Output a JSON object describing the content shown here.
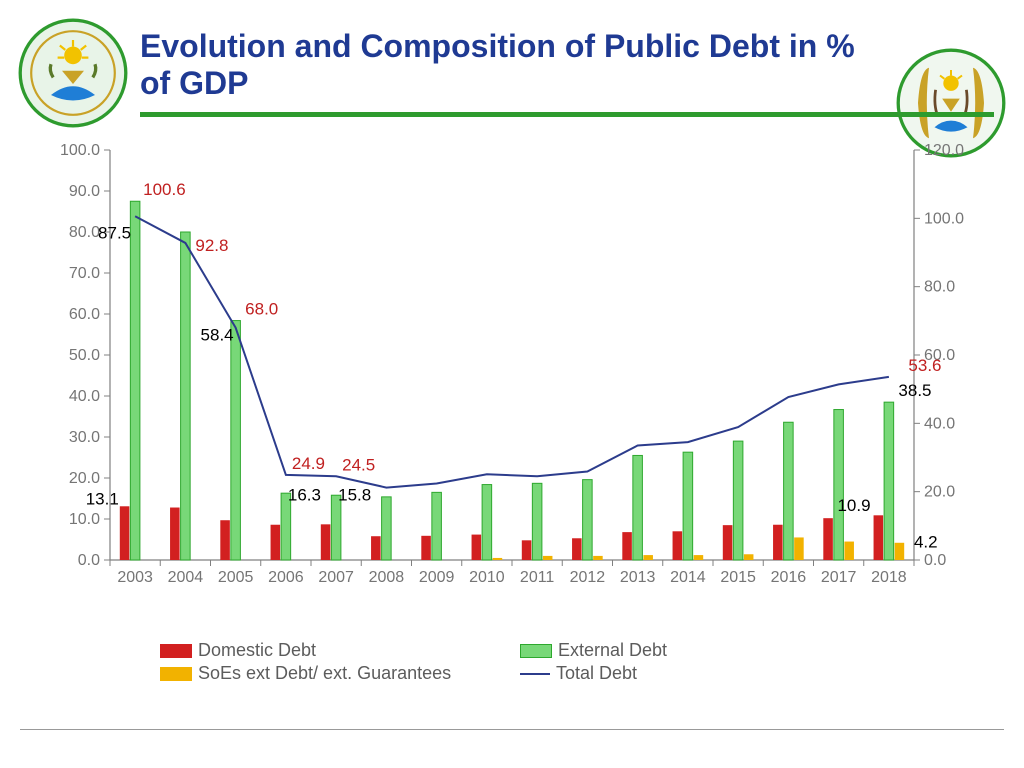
{
  "title": "Evolution and Composition of Public Debt in % of GDP",
  "colors": {
    "title": "#1f3a93",
    "rule": "#2e9b2e",
    "axis_text": "#757575",
    "axis_line": "#808080",
    "domestic": "#d22020",
    "external_fill": "#78d878",
    "external_stroke": "#2ea82e",
    "soes": "#f2b200",
    "line": "#2c3c8c",
    "label_black": "#000000",
    "label_red": "#c02020",
    "background": "#ffffff"
  },
  "chart": {
    "type": "bar+line",
    "years": [
      "2003",
      "2004",
      "2005",
      "2006",
      "2007",
      "2008",
      "2009",
      "2010",
      "2011",
      "2012",
      "2013",
      "2014",
      "2015",
      "2016",
      "2017",
      "2018"
    ],
    "left_axis": {
      "min": 0,
      "max": 100,
      "step": 10,
      "decimals": 1
    },
    "right_axis": {
      "min": 0,
      "max": 120,
      "step": 20,
      "decimals": 1
    },
    "series": {
      "domestic": [
        13.1,
        12.8,
        9.7,
        8.6,
        8.7,
        5.8,
        5.9,
        6.2,
        4.8,
        5.3,
        6.8,
        7.0,
        8.5,
        8.6,
        10.2,
        10.9
      ],
      "external": [
        87.5,
        80.0,
        58.4,
        16.3,
        15.8,
        15.4,
        16.5,
        18.4,
        18.7,
        19.6,
        25.5,
        26.3,
        29.0,
        33.6,
        36.7,
        38.5
      ],
      "soes": [
        0,
        0,
        0,
        0,
        0,
        0,
        0,
        0.5,
        1.0,
        1.0,
        1.2,
        1.2,
        1.4,
        5.5,
        4.5,
        4.2
      ],
      "total": [
        100.6,
        92.8,
        68.0,
        24.9,
        24.5,
        21.2,
        22.4,
        25.1,
        24.5,
        25.9,
        33.5,
        34.5,
        38.9,
        47.7,
        51.4,
        53.6
      ]
    },
    "labels": [
      {
        "year": "2003",
        "text": "13.1",
        "color": "black",
        "pos": "low"
      },
      {
        "year": "2003",
        "text": "100.6",
        "color": "red",
        "pos": "top"
      },
      {
        "year": "2003",
        "text": "87.5",
        "color": "black",
        "pos": "high"
      },
      {
        "year": "2004",
        "text": "92.8",
        "color": "red",
        "pos": "high"
      },
      {
        "year": "2005",
        "text": "68.0",
        "color": "red",
        "pos": "highR"
      },
      {
        "year": "2005",
        "text": "58.4",
        "color": "black",
        "pos": "mid"
      },
      {
        "year": "2006",
        "text": "16.3",
        "color": "black",
        "pos": "lowR"
      },
      {
        "year": "2006",
        "text": "24.9",
        "color": "red",
        "pos": "upR"
      },
      {
        "year": "2007",
        "text": "15.8",
        "color": "black",
        "pos": "lowR"
      },
      {
        "year": "2007",
        "text": "24.5",
        "color": "red",
        "pos": "upR"
      },
      {
        "year": "2018",
        "text": "53.6",
        "color": "red",
        "pos": "topR"
      },
      {
        "year": "2018",
        "text": "38.5",
        "color": "black",
        "pos": "highR"
      },
      {
        "year": "2018",
        "text": "10.9",
        "color": "black",
        "pos": "lowL"
      },
      {
        "year": "2018",
        "text": "4.2",
        "color": "black",
        "pos": "bottomR"
      }
    ],
    "fontsize_axis": 16,
    "fontsize_label": 17
  },
  "legend": {
    "items": [
      {
        "key": "domestic",
        "label": "Domestic Debt",
        "swatch": "#d22020",
        "type": "bar"
      },
      {
        "key": "external",
        "label": "External Debt",
        "swatch": "#78d878",
        "type": "bar",
        "stroke": "#2ea82e"
      },
      {
        "key": "soes",
        "label": "SoEs  ext Debt/ ext. Guarantees",
        "swatch": "#f2b200",
        "type": "bar"
      },
      {
        "key": "total",
        "label": "Total Debt",
        "swatch": "#2c3c8c",
        "type": "line"
      }
    ]
  }
}
